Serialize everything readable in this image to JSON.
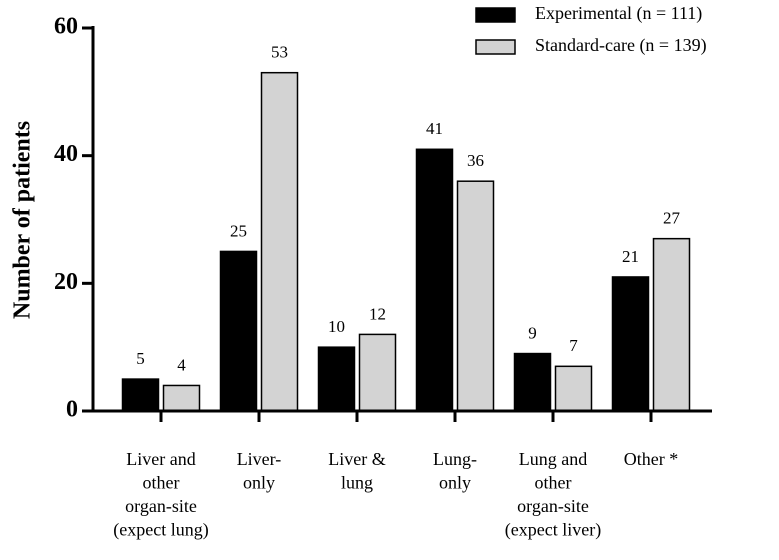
{
  "chart_data": {
    "type": "bar",
    "ylabel": "Number of patients",
    "categories": [
      [
        "Liver and",
        "other",
        "organ-site",
        "(expect lung)"
      ],
      [
        "Liver-",
        "only"
      ],
      [
        "Liver &",
        "lung"
      ],
      [
        "Lung-",
        "only"
      ],
      [
        "Lung and",
        "other",
        "organ-site",
        "(expect liver)"
      ],
      [
        "Other *"
      ]
    ],
    "series": [
      {
        "name": "Experimental (n = 111)",
        "color": "#000000",
        "values": [
          5,
          25,
          10,
          41,
          9,
          21
        ]
      },
      {
        "name": "Standard-care (n = 139)",
        "color": "#d3d3d3",
        "values": [
          4,
          53,
          12,
          36,
          7,
          27
        ]
      }
    ],
    "ylim": [
      0,
      60
    ],
    "yticks": [
      0,
      20,
      40,
      60
    ],
    "legend": "top-right"
  }
}
